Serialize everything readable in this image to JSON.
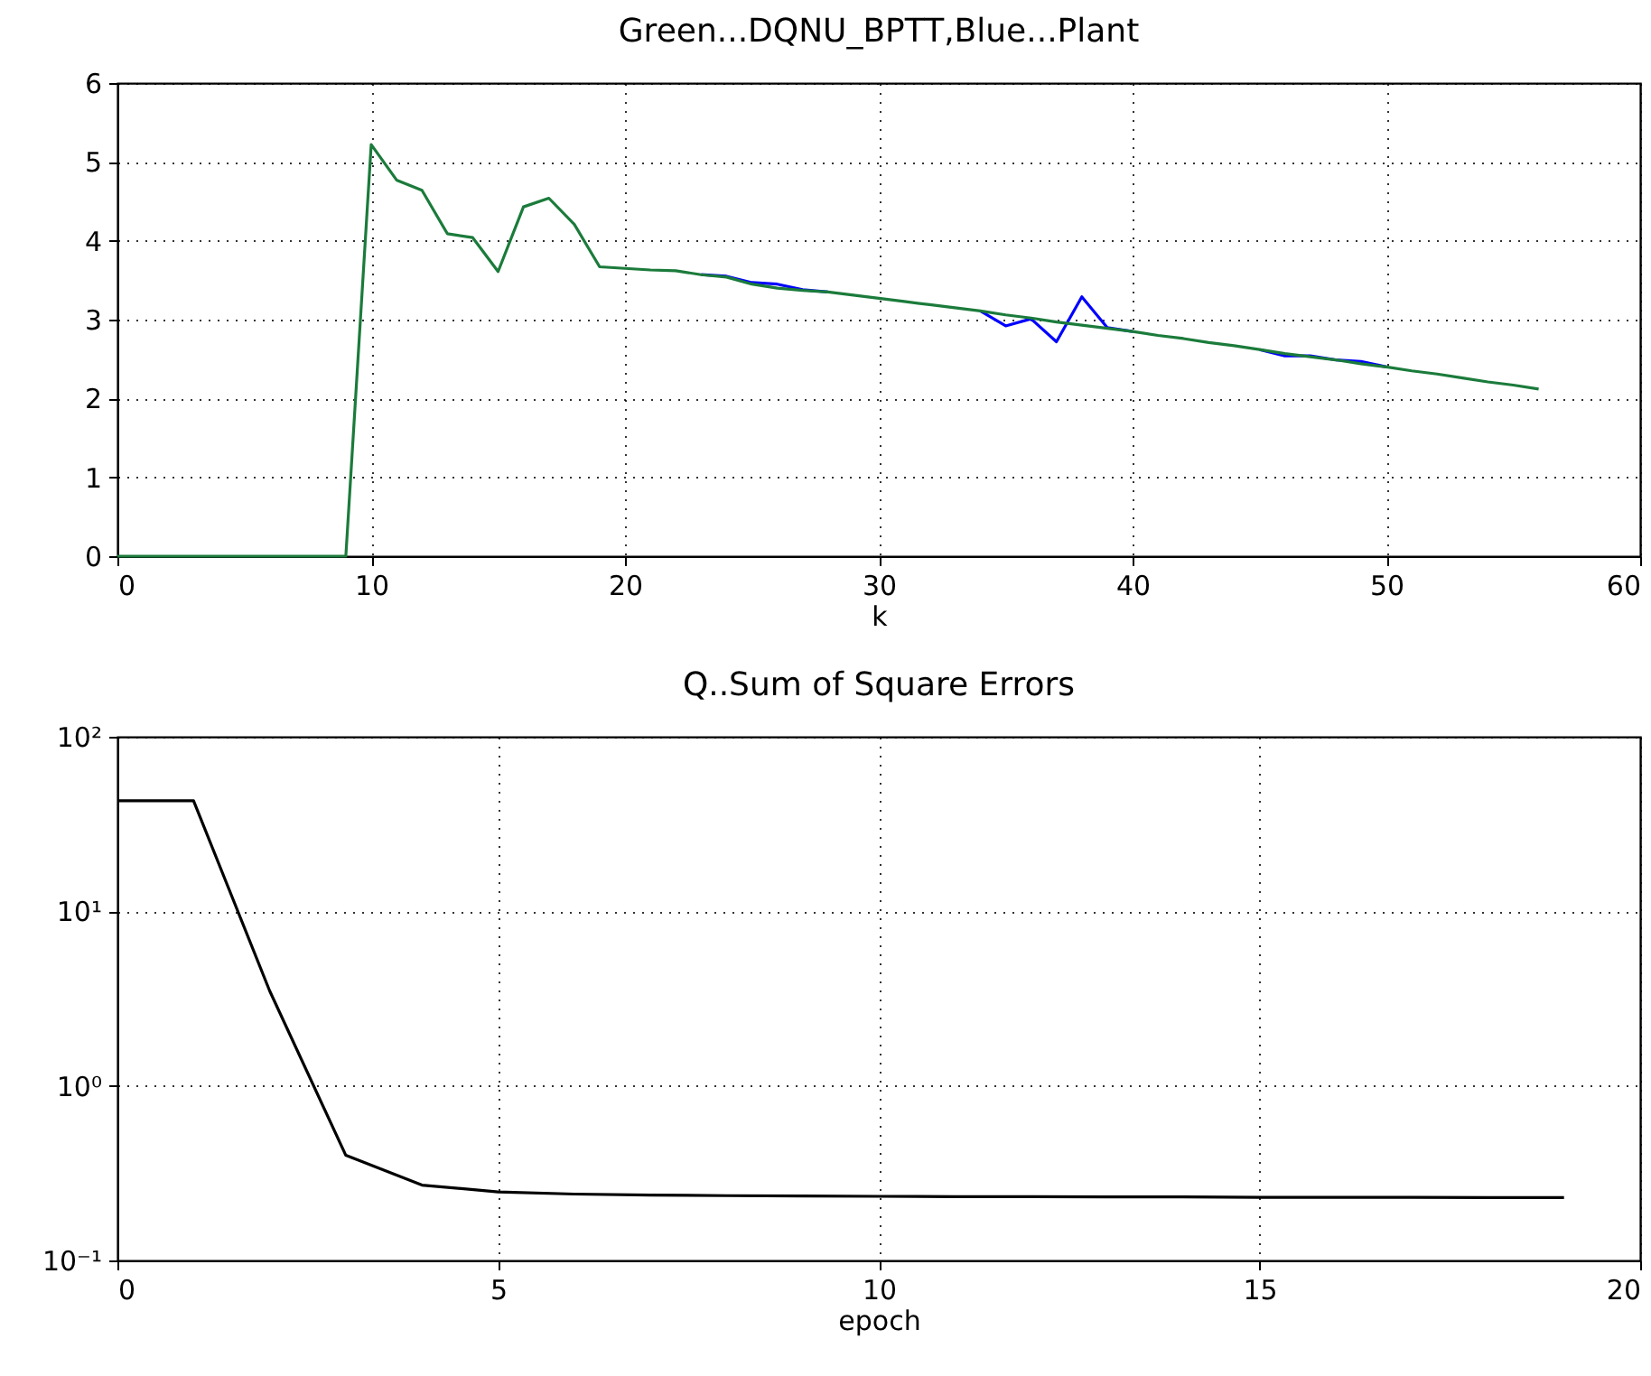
{
  "chart_data": [
    {
      "type": "line",
      "title": "Green...DQNU_BPTT,Blue...Plant",
      "xlabel": "k",
      "x": [
        0,
        1,
        2,
        3,
        4,
        5,
        6,
        7,
        8,
        9,
        10,
        11,
        12,
        13,
        14,
        15,
        16,
        17,
        18,
        19,
        20,
        21,
        22,
        23,
        24,
        25,
        26,
        27,
        28,
        29,
        30,
        31,
        32,
        33,
        34,
        35,
        36,
        37,
        38,
        39,
        40,
        41,
        42,
        43,
        44,
        45,
        46,
        47,
        48,
        49,
        50,
        51,
        52,
        53,
        54,
        55,
        56
      ],
      "series": [
        {
          "color": "#0000ff",
          "values": [
            null,
            null,
            null,
            null,
            null,
            null,
            null,
            null,
            null,
            null,
            null,
            null,
            null,
            null,
            null,
            null,
            null,
            null,
            null,
            null,
            null,
            null,
            null,
            3.57,
            3.55,
            3.47,
            3.45,
            3.38,
            3.35,
            null,
            null,
            null,
            null,
            null,
            3.11,
            2.92,
            3.01,
            2.72,
            3.29,
            2.9,
            2.85,
            null,
            null,
            null,
            null,
            2.62,
            2.54,
            2.54,
            2.49,
            2.47,
            2.4,
            null,
            null,
            null,
            null,
            null,
            null
          ]
        },
        {
          "color": "#1b7b3b",
          "values": [
            0,
            0,
            0,
            0,
            0,
            0,
            0,
            0,
            0,
            0,
            5.22,
            4.77,
            4.64,
            4.09,
            4.04,
            3.61,
            4.43,
            4.54,
            4.21,
            3.67,
            3.65,
            3.63,
            3.62,
            3.57,
            3.54,
            3.45,
            3.4,
            3.37,
            3.35,
            3.31,
            3.27,
            3.23,
            3.19,
            3.15,
            3.11,
            3.06,
            3.02,
            2.97,
            2.93,
            2.89,
            2.85,
            2.8,
            2.76,
            2.71,
            2.67,
            2.62,
            2.57,
            2.53,
            2.49,
            2.44,
            2.4,
            2.35,
            2.31,
            2.26,
            2.21,
            2.17,
            2.12
          ]
        }
      ],
      "xlim": [
        0,
        60
      ],
      "xticks": [
        0,
        10,
        20,
        30,
        40,
        50,
        60
      ],
      "ylim": [
        0,
        6
      ],
      "yticks": [
        0,
        1,
        2,
        3,
        4,
        5,
        6
      ],
      "grid": true,
      "line_style": "solid"
    },
    {
      "type": "line",
      "title": "Q..Sum of Square Errors",
      "xlabel": "epoch",
      "x": [
        0,
        1,
        2,
        3,
        4,
        5,
        6,
        7,
        8,
        9,
        10,
        11,
        12,
        13,
        14,
        15,
        16,
        17,
        18,
        19
      ],
      "series": [
        {
          "color": "#000000",
          "values": [
            43,
            43,
            3.5,
            0.4,
            0.27,
            0.247,
            0.24,
            0.237,
            0.235,
            0.234,
            0.233,
            0.232,
            0.232,
            0.231,
            0.231,
            0.23,
            0.23,
            0.23,
            0.229,
            0.229
          ]
        }
      ],
      "xlim": [
        0,
        20
      ],
      "xticks": [
        0,
        5,
        10,
        15,
        20
      ],
      "ylim": [
        0.1,
        100
      ],
      "yticks": [
        {
          "value": 0.1,
          "label": "10⁻¹"
        },
        {
          "value": 1,
          "label": "10⁰"
        },
        {
          "value": 10,
          "label": "10¹"
        },
        {
          "value": 100,
          "label": "10²"
        }
      ],
      "log": true,
      "grid": true,
      "line_style": "solid"
    }
  ]
}
